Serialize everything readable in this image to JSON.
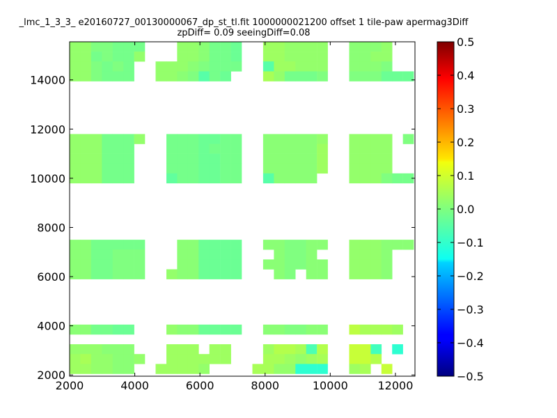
{
  "title": {
    "line1": "_lmc_1_3_3_ e20160727_00130000067_dp_st_tl.fit 1000000021200 offset 1 tile-paw apermag3Diff",
    "line2": "zpDiff= 0.09 seeingDiff=0.08"
  },
  "chart_data": {
    "type": "heatmap",
    "title": "_lmc_1_3_3_ e20160727_00130000067_dp_st_tl.fit 1000000021200 offset 1 tile-paw apermag3Diff zpDiff= 0.09 seeingDiff=0.08",
    "xlabel": "",
    "ylabel": "",
    "xlim": [
      2000,
      12600
    ],
    "ylim": [
      1950,
      15550
    ],
    "x_ticks": [
      "2000",
      "4000",
      "6000",
      "8000",
      "10000",
      "12000"
    ],
    "y_ticks": [
      "2000",
      "4000",
      "6000",
      "8000",
      "10000",
      "12000",
      "14000"
    ],
    "colorbar": {
      "range": [
        -0.5,
        0.5
      ],
      "ticks": [
        "0.5",
        "0.4",
        "0.3",
        "0.2",
        "0.1",
        "0.0",
        "−0.1",
        "−0.2",
        "−0.3",
        "−0.4",
        "−0.5"
      ],
      "colormap": "jet"
    },
    "cell_size": [
      330,
      400
    ],
    "x_column_starts": [
      2000,
      2330,
      2660,
      2990,
      3320,
      3650,
      3980,
      4310,
      4640,
      4970,
      5300,
      5630,
      5960,
      6290,
      6620,
      6950,
      7280,
      7610,
      7940,
      8270,
      8600,
      8930,
      9260,
      9590,
      9920,
      10250,
      10580,
      10910,
      11240,
      11570,
      11900,
      12230
    ],
    "y_row_starts": [
      15550,
      15150,
      14750,
      14350,
      13950,
      11800,
      11400,
      11000,
      10600,
      10200,
      7900,
      7500,
      7100,
      6700,
      6300,
      4050,
      3650,
      3250,
      2850,
      2450
    ],
    "z": [
      [
        0.02,
        0.02,
        0.0,
        0.0,
        -0.01,
        -0.01,
        -0.01,
        null,
        null,
        null,
        0.02,
        0.02,
        0.01,
        -0.01,
        -0.01,
        -0.02,
        null,
        null,
        0.03,
        0.03,
        0.02,
        0.02,
        0.02,
        0.02,
        null,
        null,
        0.01,
        0.01,
        0.01,
        0.02,
        null,
        null
      ],
      [
        0.02,
        0.02,
        -0.01,
        0.0,
        -0.01,
        -0.01,
        0.02,
        null,
        null,
        null,
        0.02,
        0.02,
        0.01,
        -0.01,
        -0.01,
        -0.02,
        null,
        null,
        0.03,
        0.03,
        0.02,
        0.02,
        0.02,
        0.02,
        null,
        null,
        0.01,
        0.01,
        0.02,
        0.02,
        null,
        null
      ],
      [
        0.02,
        0.02,
        0.0,
        -0.01,
        0.0,
        -0.01,
        null,
        null,
        0.02,
        0.02,
        0.02,
        0.01,
        0.0,
        -0.01,
        -0.01,
        -0.01,
        null,
        null,
        -0.04,
        0.03,
        0.03,
        0.02,
        0.02,
        0.02,
        null,
        null,
        0.01,
        0.01,
        0.01,
        0.0,
        null,
        null
      ],
      [
        0.02,
        0.02,
        0.0,
        -0.01,
        -0.01,
        -0.01,
        null,
        null,
        0.02,
        0.02,
        0.01,
        0.0,
        -0.04,
        -0.01,
        -0.02,
        null,
        null,
        null,
        0.04,
        0.02,
        -0.01,
        -0.01,
        -0.01,
        0.0,
        null,
        null,
        0.0,
        0.0,
        0.0,
        -0.02,
        -0.02,
        -0.02
      ],
      [
        null,
        null,
        null,
        null,
        null,
        null,
        null,
        null,
        null,
        null,
        null,
        null,
        null,
        null,
        null,
        null,
        null,
        null,
        null,
        null,
        null,
        null,
        null,
        null,
        null,
        null,
        null,
        null,
        null,
        null,
        null,
        null
      ],
      [
        0.02,
        0.02,
        0.02,
        -0.01,
        -0.01,
        -0.01,
        0.02,
        null,
        null,
        -0.01,
        -0.01,
        -0.01,
        -0.02,
        -0.02,
        -0.01,
        -0.01,
        null,
        null,
        0.01,
        0.01,
        0.01,
        0.01,
        0.01,
        0.02,
        null,
        null,
        0.02,
        0.02,
        0.02,
        0.02,
        null,
        0.0
      ],
      [
        0.02,
        0.02,
        0.02,
        -0.01,
        -0.01,
        -0.01,
        null,
        null,
        null,
        -0.01,
        -0.01,
        -0.01,
        -0.02,
        -0.01,
        -0.01,
        -0.01,
        null,
        null,
        0.01,
        0.01,
        0.01,
        0.01,
        0.01,
        0.03,
        null,
        null,
        0.02,
        0.02,
        0.02,
        0.02,
        null,
        null
      ],
      [
        0.02,
        0.02,
        0.02,
        -0.01,
        -0.01,
        -0.01,
        null,
        null,
        null,
        -0.01,
        -0.01,
        -0.01,
        -0.02,
        -0.02,
        -0.01,
        -0.01,
        null,
        null,
        0.01,
        0.01,
        0.01,
        0.01,
        0.01,
        0.03,
        null,
        null,
        0.02,
        0.02,
        0.02,
        0.02,
        null,
        null
      ],
      [
        0.02,
        0.02,
        0.02,
        -0.01,
        -0.01,
        -0.01,
        null,
        null,
        null,
        -0.01,
        -0.01,
        -0.01,
        -0.02,
        -0.02,
        -0.01,
        -0.01,
        null,
        null,
        0.01,
        0.01,
        0.01,
        0.01,
        0.01,
        0.03,
        null,
        null,
        0.02,
        0.02,
        0.02,
        0.02,
        null,
        null
      ],
      [
        0.02,
        0.02,
        0.02,
        -0.01,
        -0.01,
        -0.01,
        null,
        null,
        null,
        -0.03,
        -0.01,
        -0.01,
        -0.02,
        -0.02,
        -0.01,
        -0.01,
        null,
        null,
        -0.04,
        0.01,
        0.01,
        0.01,
        0.01,
        null,
        null,
        null,
        0.02,
        0.02,
        0.02,
        0.0,
        -0.01,
        -0.01
      ],
      [
        null,
        null,
        null,
        null,
        null,
        null,
        null,
        null,
        null,
        null,
        null,
        null,
        null,
        null,
        null,
        null,
        null,
        null,
        null,
        null,
        null,
        null,
        null,
        null,
        null,
        null,
        null,
        null,
        null,
        null,
        null,
        null
      ],
      [
        0.01,
        0.01,
        -0.01,
        -0.01,
        -0.01,
        -0.01,
        -0.01,
        null,
        null,
        null,
        0.01,
        0.01,
        -0.02,
        -0.02,
        -0.02,
        -0.02,
        null,
        null,
        0.01,
        0.01,
        0.0,
        0.0,
        0.01,
        0.01,
        null,
        null,
        0.02,
        0.02,
        0.02,
        0.01,
        0.01,
        0.01
      ],
      [
        0.01,
        0.01,
        -0.01,
        -0.01,
        0.0,
        0.0,
        0.0,
        null,
        null,
        null,
        0.01,
        0.01,
        -0.02,
        -0.02,
        -0.02,
        -0.02,
        null,
        null,
        null,
        0.01,
        0.0,
        0.0,
        0.01,
        null,
        null,
        null,
        0.02,
        0.02,
        0.02,
        0.01,
        null,
        null
      ],
      [
        0.01,
        0.01,
        -0.01,
        -0.01,
        0.0,
        0.0,
        0.0,
        null,
        null,
        null,
        0.01,
        0.01,
        -0.02,
        -0.02,
        -0.02,
        -0.02,
        null,
        null,
        0.01,
        0.01,
        0.0,
        0.0,
        0.01,
        0.01,
        null,
        null,
        0.02,
        0.02,
        0.02,
        0.01,
        null,
        null
      ],
      [
        0.01,
        0.01,
        -0.01,
        -0.01,
        0.0,
        0.0,
        0.0,
        null,
        null,
        0.02,
        0.01,
        0.01,
        -0.02,
        -0.02,
        -0.02,
        -0.02,
        null,
        null,
        null,
        0.01,
        0.0,
        null,
        0.01,
        0.01,
        null,
        null,
        0.02,
        0.02,
        0.02,
        0.01,
        null,
        null
      ],
      [
        0.01,
        0.01,
        -0.01,
        -0.01,
        -0.02,
        -0.02,
        null,
        null,
        null,
        0.02,
        0.01,
        0.01,
        -0.02,
        -0.02,
        -0.02,
        -0.02,
        null,
        null,
        0.01,
        0.01,
        0.0,
        0.0,
        0.01,
        0.01,
        null,
        null,
        0.06,
        0.04,
        0.04,
        0.04,
        0.03,
        null
      ],
      [
        null,
        null,
        null,
        null,
        null,
        null,
        null,
        null,
        null,
        null,
        null,
        null,
        null,
        null,
        null,
        null,
        null,
        null,
        null,
        null,
        null,
        null,
        null,
        null,
        null,
        null,
        null,
        null,
        null,
        null,
        null,
        null
      ],
      [
        0.02,
        0.02,
        0.02,
        0.01,
        0.01,
        0.01,
        null,
        null,
        null,
        0.03,
        0.03,
        0.03,
        null,
        0.03,
        0.03,
        null,
        null,
        null,
        0.03,
        0.05,
        0.05,
        0.04,
        -0.05,
        0.05,
        null,
        null,
        0.07,
        0.07,
        -0.06,
        null,
        -0.08,
        null
      ],
      [
        0.03,
        0.04,
        0.02,
        0.02,
        0.01,
        0.01,
        0.02,
        null,
        null,
        0.03,
        0.03,
        0.03,
        0.03,
        0.03,
        0.03,
        null,
        null,
        null,
        0.04,
        0.04,
        0.03,
        0.02,
        0.03,
        0.04,
        null,
        null,
        0.07,
        0.07,
        0.05,
        null,
        null,
        null
      ],
      [
        0.03,
        0.03,
        0.02,
        0.02,
        0.01,
        0.01,
        null,
        null,
        0.03,
        0.03,
        0.03,
        0.03,
        0.02,
        null,
        null,
        null,
        null,
        0.04,
        0.04,
        0.02,
        0.02,
        -0.08,
        -0.08,
        -0.08,
        null,
        null,
        0.03,
        0.04,
        null,
        0.07,
        null,
        null
      ]
    ]
  }
}
